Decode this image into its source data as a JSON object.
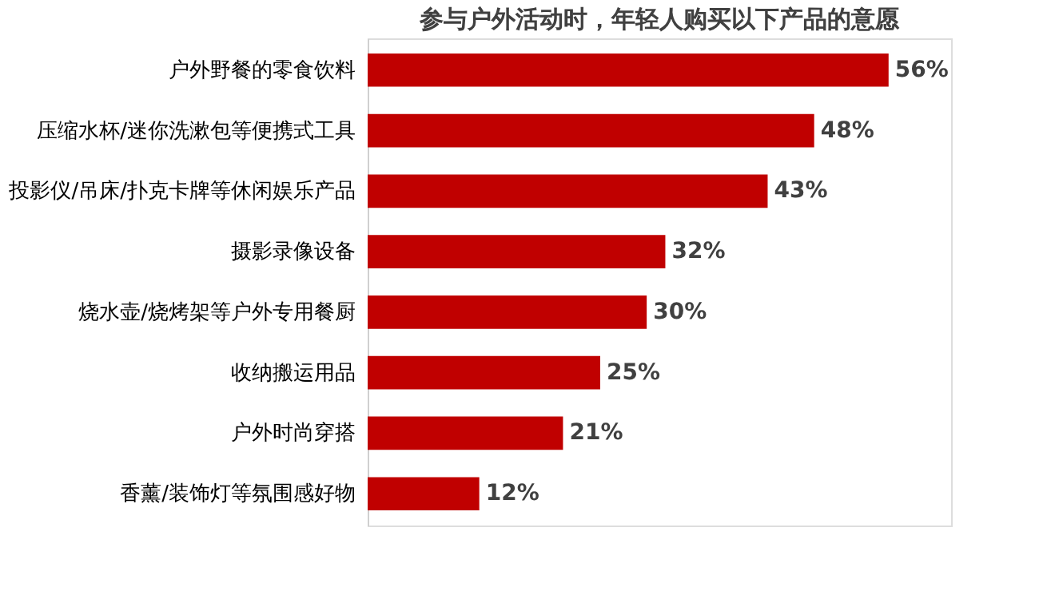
{
  "chart_data": {
    "type": "bar",
    "orientation": "horizontal",
    "title": "参与户外活动时，年轻人购买以下产品的意愿",
    "categories": [
      "户外野餐的零食饮料",
      "压缩水杯/迷你洗漱包等便携式工具",
      "投影仪/吊床/扑克卡牌等休闲娱乐产品",
      "摄影录像设备",
      "烧水壶/烧烤架等户外专用餐厨",
      "收纳搬运用品",
      "户外时尚穿搭",
      "香薰/装饰灯等氛围感好物"
    ],
    "values": [
      56,
      48,
      43,
      32,
      30,
      25,
      21,
      12
    ],
    "value_labels": [
      "56%",
      "48%",
      "43%",
      "32%",
      "30%",
      "25%",
      "21%",
      "12%"
    ],
    "color": "#c00000"
  }
}
